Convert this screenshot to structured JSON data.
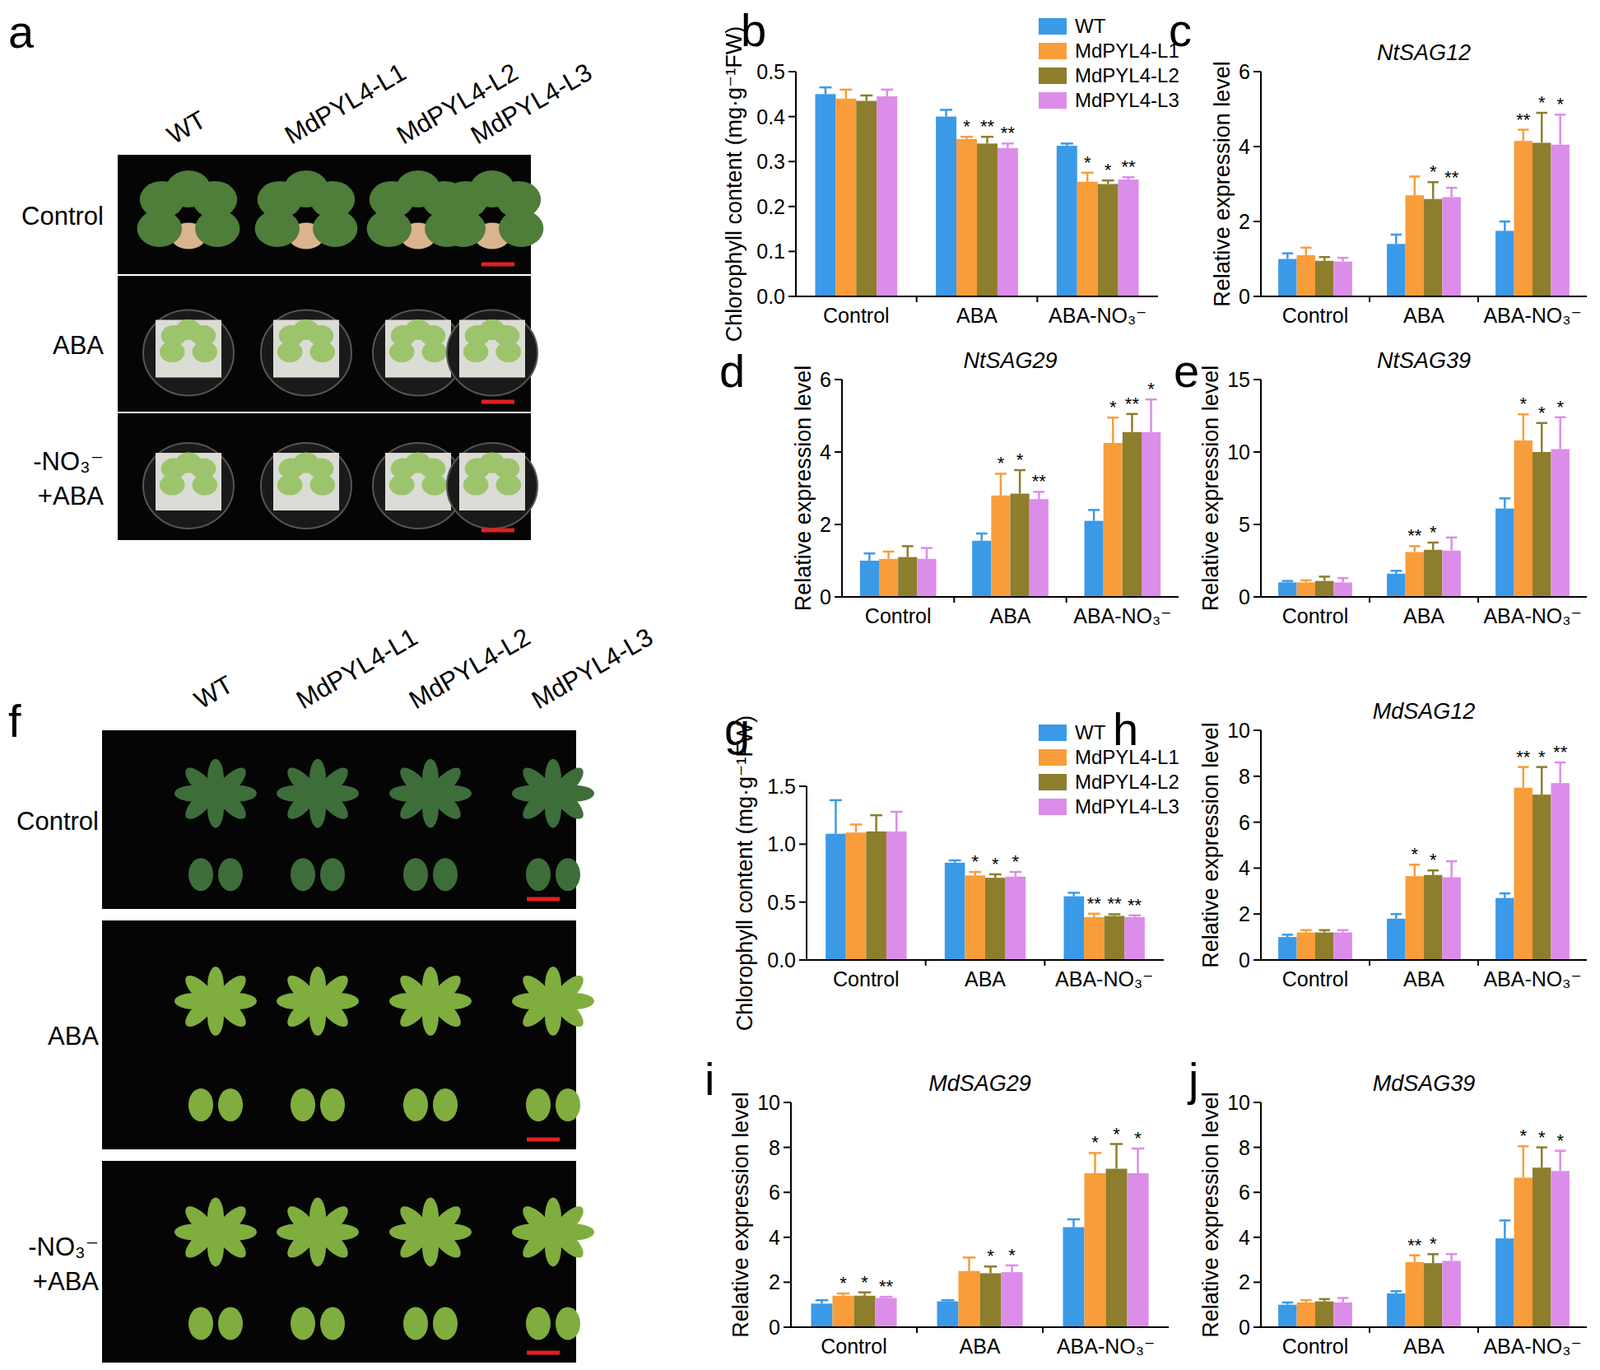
{
  "photo_panels": [
    {
      "panel": "a",
      "columns": [
        "WT",
        "MdPYL4-L1",
        "MdPYL4-L2",
        "MdPYL4-L3"
      ],
      "rows": [
        [
          "Control"
        ],
        [
          "ABA"
        ],
        [
          "-NO₃⁻",
          "+ABA"
        ]
      ]
    },
    {
      "panel": "f",
      "columns": [
        "WT",
        "MdPYL4-L1",
        "MdPYL4-L2",
        "MdPYL4-L3"
      ],
      "rows": [
        [
          "Control"
        ],
        [
          "ABA"
        ],
        [
          "-NO₃⁻",
          "+ABA"
        ]
      ]
    }
  ],
  "chart_data": [
    {
      "panel": "b",
      "type": "bar",
      "y_label": "Chlorophyll content (mg·g⁻¹FW)",
      "categories": [
        "Control",
        "ABA",
        "ABA-NO₃⁻"
      ],
      "ylim": [
        0,
        0.5
      ],
      "yticks": [
        {
          "value": 0,
          "label": "0.0"
        },
        0.1,
        0.2,
        0.3,
        0.4,
        0.5
      ],
      "legend": "top-right",
      "series": [
        {
          "name": "WT",
          "color": "#3a9ae8",
          "values": [
            0.45,
            0.4,
            0.335
          ],
          "errors": [
            0.015,
            0.015,
            0.005
          ],
          "significance": [
            null,
            null,
            null
          ]
        },
        {
          "name": "MdPYL4-L1",
          "color": "#f99d3a",
          "values": [
            0.44,
            0.35,
            0.255
          ],
          "errors": [
            0.02,
            0.005,
            0.02
          ],
          "significance": [
            null,
            "*",
            "*"
          ]
        },
        {
          "name": "MdPYL4-L2",
          "color": "#8c7e2c",
          "values": [
            0.435,
            0.34,
            0.25
          ],
          "errors": [
            0.012,
            0.015,
            0.008
          ],
          "significance": [
            null,
            "**",
            "*"
          ]
        },
        {
          "name": "MdPYL4-L3",
          "color": "#dc8de9",
          "values": [
            0.445,
            0.33,
            0.26
          ],
          "errors": [
            0.015,
            0.01,
            0.005
          ],
          "significance": [
            null,
            "**",
            "**"
          ]
        }
      ]
    },
    {
      "panel": "c",
      "type": "bar",
      "title": "NtSAG12",
      "y_label": "Relative expression level",
      "categories": [
        "Control",
        "ABA",
        "ABA-NO₃⁻"
      ],
      "ylim": [
        0,
        6
      ],
      "yticks": [
        0,
        2,
        4,
        6
      ],
      "series": [
        {
          "name": "WT",
          "color": "#3a9ae8",
          "values": [
            1.0,
            1.4,
            1.75
          ],
          "errors": [
            0.15,
            0.25,
            0.25
          ],
          "significance": [
            null,
            null,
            null
          ]
        },
        {
          "name": "MdPYL4-L1",
          "color": "#f99d3a",
          "values": [
            1.1,
            2.7,
            4.15
          ],
          "errors": [
            0.2,
            0.5,
            0.3
          ],
          "significance": [
            null,
            null,
            "**"
          ]
        },
        {
          "name": "MdPYL4-L2",
          "color": "#8c7e2c",
          "values": [
            0.95,
            2.6,
            4.1
          ],
          "errors": [
            0.1,
            0.45,
            0.8
          ],
          "significance": [
            null,
            "*",
            "*"
          ]
        },
        {
          "name": "MdPYL4-L3",
          "color": "#dc8de9",
          "values": [
            0.93,
            2.65,
            4.05
          ],
          "errors": [
            0.1,
            0.25,
            0.8
          ],
          "significance": [
            null,
            "**",
            "*"
          ]
        }
      ]
    },
    {
      "panel": "d",
      "type": "bar",
      "title": "NtSAG29",
      "y_label": "Relative expression level",
      "categories": [
        "Control",
        "ABA",
        "ABA-NO₃⁻"
      ],
      "ylim": [
        0,
        6
      ],
      "yticks": [
        0,
        2,
        4,
        6
      ],
      "series": [
        {
          "name": "WT",
          "color": "#3a9ae8",
          "values": [
            1.0,
            1.55,
            2.1
          ],
          "errors": [
            0.2,
            0.2,
            0.3
          ],
          "significance": [
            null,
            null,
            null
          ]
        },
        {
          "name": "MdPYL4-L1",
          "color": "#f99d3a",
          "values": [
            1.05,
            2.8,
            4.25
          ],
          "errors": [
            0.2,
            0.6,
            0.7
          ],
          "significance": [
            null,
            "*",
            "*"
          ]
        },
        {
          "name": "MdPYL4-L2",
          "color": "#8c7e2c",
          "values": [
            1.1,
            2.85,
            4.55
          ],
          "errors": [
            0.3,
            0.65,
            0.5
          ],
          "significance": [
            null,
            "*",
            "**"
          ]
        },
        {
          "name": "MdPYL4-L3",
          "color": "#dc8de9",
          "values": [
            1.05,
            2.7,
            4.55
          ],
          "errors": [
            0.3,
            0.2,
            0.9
          ],
          "significance": [
            null,
            "**",
            "*"
          ]
        }
      ]
    },
    {
      "panel": "e",
      "type": "bar",
      "title": "NtSAG39",
      "y_label": "Relative expression level",
      "categories": [
        "Control",
        "ABA",
        "ABA-NO₃⁻"
      ],
      "ylim": [
        0,
        15
      ],
      "yticks": [
        0,
        5,
        10,
        15
      ],
      "series": [
        {
          "name": "WT",
          "color": "#3a9ae8",
          "values": [
            1.0,
            1.6,
            6.1
          ],
          "errors": [
            0.1,
            0.2,
            0.7
          ],
          "significance": [
            null,
            null,
            null
          ]
        },
        {
          "name": "MdPYL4-L1",
          "color": "#f99d3a",
          "values": [
            1.0,
            3.1,
            10.8
          ],
          "errors": [
            0.15,
            0.4,
            1.8
          ],
          "significance": [
            null,
            "**",
            "*"
          ]
        },
        {
          "name": "MdPYL4-L2",
          "color": "#8c7e2c",
          "values": [
            1.1,
            3.25,
            10.0
          ],
          "errors": [
            0.3,
            0.5,
            2.0
          ],
          "significance": [
            null,
            "*",
            "*"
          ]
        },
        {
          "name": "MdPYL4-L3",
          "color": "#dc8de9",
          "values": [
            1.0,
            3.2,
            10.2
          ],
          "errors": [
            0.3,
            0.9,
            2.2
          ],
          "significance": [
            null,
            null,
            "*"
          ]
        }
      ]
    },
    {
      "panel": "g",
      "type": "bar",
      "y_label": "Chlorophyll  content (mg·g⁻¹FW)",
      "categories": [
        "Control",
        "ABA",
        "ABA-NO₃⁻"
      ],
      "ylim": [
        0,
        1.5
      ],
      "yticks": [
        {
          "value": 0,
          "label": "0.0"
        },
        0.5,
        {
          "value": 1,
          "label": "1.0"
        },
        1.5
      ],
      "legend": "top-right",
      "series": [
        {
          "name": "WT",
          "color": "#3a9ae8",
          "values": [
            1.09,
            0.84,
            0.55
          ],
          "errors": [
            0.29,
            0.02,
            0.03
          ],
          "significance": [
            null,
            null,
            null
          ]
        },
        {
          "name": "MdPYL4-L1",
          "color": "#f99d3a",
          "values": [
            1.1,
            0.73,
            0.37
          ],
          "errors": [
            0.07,
            0.03,
            0.03
          ],
          "significance": [
            null,
            "*",
            "**"
          ]
        },
        {
          "name": "MdPYL4-L2",
          "color": "#8c7e2c",
          "values": [
            1.11,
            0.71,
            0.38
          ],
          "errors": [
            0.14,
            0.03,
            0.015
          ],
          "significance": [
            null,
            "*",
            "**"
          ]
        },
        {
          "name": "MdPYL4-L3",
          "color": "#dc8de9",
          "values": [
            1.11,
            0.72,
            0.37
          ],
          "errors": [
            0.17,
            0.04,
            0.015
          ],
          "significance": [
            null,
            "*",
            "**"
          ]
        }
      ]
    },
    {
      "panel": "h",
      "type": "bar",
      "title": "MdSAG12",
      "y_label": "Relative expression level",
      "categories": [
        "Control",
        "ABA",
        "ABA-NO₃⁻"
      ],
      "ylim": [
        0,
        10
      ],
      "yticks": [
        0,
        2,
        4,
        6,
        8,
        10
      ],
      "series": [
        {
          "name": "WT",
          "color": "#3a9ae8",
          "values": [
            1.0,
            1.8,
            2.7
          ],
          "errors": [
            0.1,
            0.2,
            0.2
          ],
          "significance": [
            null,
            null,
            null
          ]
        },
        {
          "name": "MdPYL4-L1",
          "color": "#f99d3a",
          "values": [
            1.2,
            3.65,
            7.5
          ],
          "errors": [
            0.1,
            0.5,
            0.9
          ],
          "significance": [
            null,
            "*",
            "**"
          ]
        },
        {
          "name": "MdPYL4-L2",
          "color": "#8c7e2c",
          "values": [
            1.2,
            3.7,
            7.2
          ],
          "errors": [
            0.1,
            0.2,
            1.2
          ],
          "significance": [
            null,
            "*",
            "*"
          ]
        },
        {
          "name": "MdPYL4-L3",
          "color": "#dc8de9",
          "values": [
            1.2,
            3.6,
            7.7
          ],
          "errors": [
            0.1,
            0.7,
            0.9
          ],
          "significance": [
            null,
            null,
            "**"
          ]
        }
      ]
    },
    {
      "panel": "i",
      "type": "bar",
      "title": "MdSAG29",
      "y_label": "Relative expression level",
      "categories": [
        "Control",
        "ABA",
        "ABA-NO₃⁻"
      ],
      "ylim": [
        0,
        10
      ],
      "yticks": [
        0,
        2,
        4,
        6,
        8,
        10
      ],
      "series": [
        {
          "name": "WT",
          "color": "#3a9ae8",
          "values": [
            1.05,
            1.15,
            4.45
          ],
          "errors": [
            0.15,
            0.05,
            0.35
          ],
          "significance": [
            null,
            null,
            null
          ]
        },
        {
          "name": "MdPYL4-L1",
          "color": "#f99d3a",
          "values": [
            1.4,
            2.5,
            6.85
          ],
          "errors": [
            0.1,
            0.6,
            0.9
          ],
          "significance": [
            "*",
            null,
            "*"
          ]
        },
        {
          "name": "MdPYL4-L2",
          "color": "#8c7e2c",
          "values": [
            1.4,
            2.4,
            7.05
          ],
          "errors": [
            0.15,
            0.3,
            1.1
          ],
          "significance": [
            "*",
            "*",
            "*"
          ]
        },
        {
          "name": "MdPYL4-L3",
          "color": "#dc8de9",
          "values": [
            1.3,
            2.45,
            6.85
          ],
          "errors": [
            0.05,
            0.3,
            1.1
          ],
          "significance": [
            "**",
            "*",
            "*"
          ]
        }
      ]
    },
    {
      "panel": "j",
      "type": "bar",
      "title": "MdSAG39",
      "y_label": "Relative expression level",
      "categories": [
        "Control",
        "ABA",
        "ABA-NO₃⁻"
      ],
      "ylim": [
        0,
        10
      ],
      "yticks": [
        0,
        2,
        4,
        6,
        8,
        10
      ],
      "series": [
        {
          "name": "WT",
          "color": "#3a9ae8",
          "values": [
            1.0,
            1.5,
            3.95
          ],
          "errors": [
            0.1,
            0.1,
            0.8
          ],
          "significance": [
            null,
            null,
            null
          ]
        },
        {
          "name": "MdPYL4-L1",
          "color": "#f99d3a",
          "values": [
            1.1,
            2.9,
            6.65
          ],
          "errors": [
            0.1,
            0.3,
            1.4
          ],
          "significance": [
            null,
            "**",
            "*"
          ]
        },
        {
          "name": "MdPYL4-L2",
          "color": "#8c7e2c",
          "values": [
            1.15,
            2.85,
            7.1
          ],
          "errors": [
            0.1,
            0.4,
            0.9
          ],
          "significance": [
            null,
            "*",
            "*"
          ]
        },
        {
          "name": "MdPYL4-L3",
          "color": "#dc8de9",
          "values": [
            1.1,
            2.95,
            6.95
          ],
          "errors": [
            0.2,
            0.3,
            0.9
          ],
          "significance": [
            null,
            null,
            "*"
          ]
        }
      ]
    }
  ]
}
